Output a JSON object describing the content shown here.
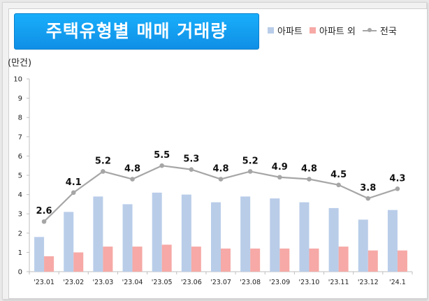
{
  "title": "주택유형별 매매 거래량",
  "unit_label": "(만건)",
  "colors": {
    "apartment": "#b9cde9",
    "non_apartment": "#f6a9a6",
    "nationwide": "#a6a6a6",
    "title_bg": "#13a2f2"
  },
  "chart_data": {
    "type": "bar",
    "title": "주택유형별 매매 거래량",
    "ylabel": "(만건)",
    "ylim": [
      0,
      10
    ],
    "yticks": [
      0,
      1,
      2,
      3,
      4,
      5,
      6,
      7,
      8,
      9,
      10
    ],
    "categories": [
      "'23.01",
      "'23.02",
      "'23.03",
      "'23.04",
      "'23.05",
      "'23.06",
      "'23.07",
      "'23.08",
      "'23.09",
      "'23.10",
      "'23.11",
      "'23.12",
      "'24.1"
    ],
    "legend_position": "top-right",
    "grid": false,
    "series": [
      {
        "name": "아파트",
        "type": "bar",
        "values": [
          1.8,
          3.1,
          3.9,
          3.5,
          4.1,
          4.0,
          3.6,
          3.9,
          3.8,
          3.6,
          3.3,
          2.7,
          3.2
        ]
      },
      {
        "name": "아파트 외",
        "type": "bar",
        "values": [
          0.8,
          1.0,
          1.3,
          1.3,
          1.4,
          1.3,
          1.2,
          1.2,
          1.2,
          1.2,
          1.3,
          1.1,
          1.1
        ]
      },
      {
        "name": "전국",
        "type": "line",
        "values": [
          2.6,
          4.1,
          5.2,
          4.8,
          5.5,
          5.3,
          4.8,
          5.2,
          4.9,
          4.8,
          4.5,
          3.8,
          4.3
        ],
        "labels": [
          "2.6",
          "4.1",
          "5.2",
          "4.8",
          "5.5",
          "5.3",
          "4.8",
          "5.2",
          "4.9",
          "4.8",
          "4.5",
          "3.8",
          "4.3"
        ]
      }
    ]
  }
}
